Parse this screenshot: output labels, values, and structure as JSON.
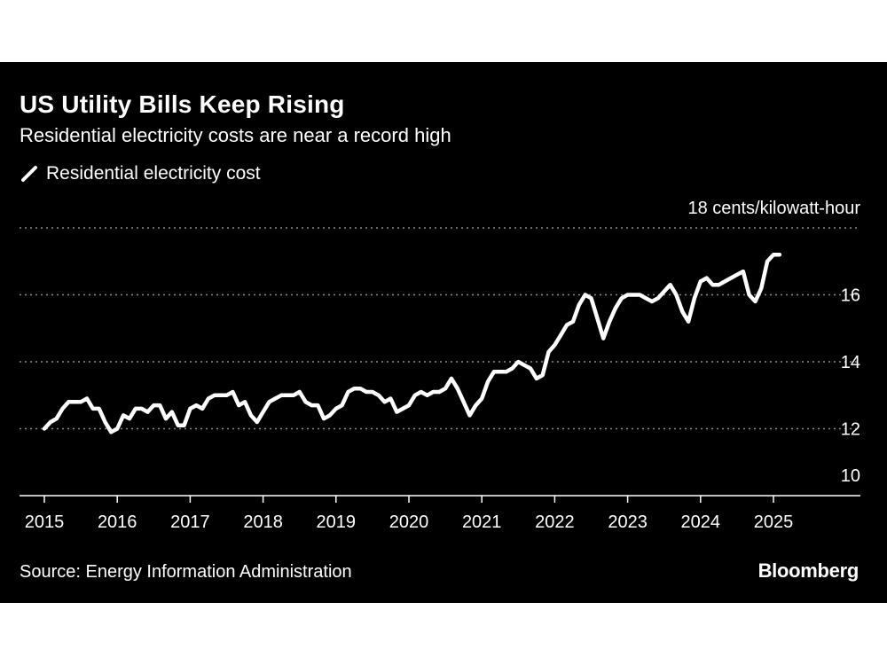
{
  "chart_data": {
    "type": "line",
    "title": "US Utility Bills Keep Rising",
    "subtitle": "Residential electricity costs are near a record high",
    "series": [
      {
        "name": "Residential electricity cost",
        "color": "#ffffff",
        "values": [
          12.0,
          12.2,
          12.3,
          12.6,
          12.8,
          12.8,
          12.8,
          12.9,
          12.6,
          12.6,
          12.2,
          11.9,
          12.0,
          12.4,
          12.3,
          12.6,
          12.6,
          12.5,
          12.7,
          12.7,
          12.3,
          12.5,
          12.1,
          12.1,
          12.6,
          12.7,
          12.6,
          12.9,
          13.0,
          13.0,
          13.0,
          13.1,
          12.7,
          12.8,
          12.4,
          12.2,
          12.5,
          12.8,
          12.9,
          13.0,
          13.0,
          13.0,
          13.1,
          12.8,
          12.7,
          12.7,
          12.3,
          12.4,
          12.6,
          12.7,
          13.1,
          13.2,
          13.2,
          13.1,
          13.1,
          13.0,
          12.8,
          12.9,
          12.5,
          12.6,
          12.7,
          13.0,
          13.1,
          13.0,
          13.1,
          13.1,
          13.2,
          13.5,
          13.2,
          12.8,
          12.4,
          12.7,
          12.9,
          13.4,
          13.7,
          13.7,
          13.7,
          13.8,
          14.0,
          13.9,
          13.8,
          13.5,
          13.6,
          14.3,
          14.5,
          14.8,
          15.1,
          15.2,
          15.7,
          16.0,
          15.9,
          15.3,
          14.7,
          15.2,
          15.6,
          15.9,
          16.0,
          16.0,
          16.0,
          15.9,
          15.8,
          15.9,
          16.1,
          16.3,
          16.0,
          15.5,
          15.2,
          15.9,
          16.4,
          16.5,
          16.3,
          16.3,
          16.4,
          16.5,
          16.6,
          16.7,
          16.0,
          15.8,
          16.2,
          17.0,
          17.2,
          17.2
        ]
      }
    ],
    "x": {
      "start": "2015-01",
      "frequency": "monthly",
      "ticks": [
        "2015",
        "2016",
        "2017",
        "2018",
        "2019",
        "2020",
        "2021",
        "2022",
        "2023",
        "2024",
        "2025"
      ]
    },
    "y": {
      "range": [
        10,
        18
      ],
      "ticks": [
        10,
        12,
        14,
        16,
        18
      ],
      "tick_labels": [
        "10",
        "12",
        "14",
        "16",
        "18 cents/kilowatt-hour"
      ]
    },
    "grid": true,
    "legend": "top-left"
  },
  "footer": {
    "source": "Source: Energy Information Administration",
    "brand": "Bloomberg"
  },
  "colors": {
    "background": "#000000",
    "line": "#ffffff",
    "gridline": "#8a8a8a",
    "text": "#ffffff"
  }
}
